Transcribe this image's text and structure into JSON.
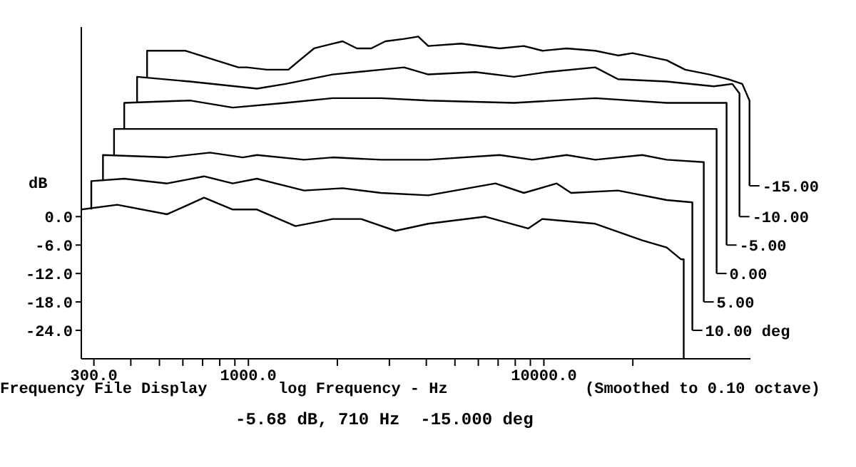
{
  "chart_data": {
    "type": "line",
    "xlabel": "log Frequency - Hz",
    "ylabel": "dB",
    "annotations": [
      "Frequency File Display",
      "(Smoothed to 0.10 octave)",
      "-5.68 dB, 710 Hz  -15.000 deg"
    ],
    "log": "x",
    "legend": "right",
    "marker": "none",
    "line_style": "solid",
    "xlim": [
      272,
      50000
    ],
    "ylim": [
      -30,
      40
    ],
    "xticks": [
      {
        "value": 300,
        "label": "300.0"
      },
      {
        "value": 400,
        "label": null
      },
      {
        "value": 500,
        "label": null
      },
      {
        "value": 600,
        "label": null
      },
      {
        "value": 700,
        "label": null
      },
      {
        "value": 800,
        "label": null
      },
      {
        "value": 900,
        "label": null
      },
      {
        "value": 1000,
        "label": "1000.0"
      },
      {
        "value": 2000,
        "label": null
      },
      {
        "value": 3000,
        "label": null
      },
      {
        "value": 4000,
        "label": null
      },
      {
        "value": 5000,
        "label": null
      },
      {
        "value": 6000,
        "label": null
      },
      {
        "value": 7000,
        "label": null
      },
      {
        "value": 8000,
        "label": null
      },
      {
        "value": 9000,
        "label": null
      },
      {
        "value": 10000,
        "label": "10000.0"
      },
      {
        "value": 20000,
        "label": null
      }
    ],
    "yticks": [
      {
        "value": 0,
        "label": "0.0"
      },
      {
        "value": -6,
        "label": "-6.0"
      },
      {
        "value": -12,
        "label": "-12.0"
      },
      {
        "value": -18,
        "label": "-18.0"
      },
      {
        "value": -24,
        "label": "-24.0"
      }
    ],
    "series": [
      {
        "name": "-15.00",
        "color": "#000000",
        "x": [
          454,
          454,
          613,
          925,
          989,
          1156,
          1366,
          1459,
          1668,
          1928,
          2084,
          2329,
          2603,
          2908,
          3363,
          3757,
          4062,
          5248,
          7085,
          8556,
          9886,
          11940,
          14920,
          17820,
          19940,
          26030,
          30070,
          36330,
          41980,
          46910,
          49640,
          49640
        ],
        "values": [
          29.5,
          35,
          35,
          31.5,
          31.5,
          31,
          31,
          32.5,
          35.5,
          36.5,
          37,
          35.5,
          35.5,
          37,
          37.5,
          38,
          36,
          36.5,
          35.5,
          36,
          35,
          35.5,
          35,
          34,
          34.5,
          33,
          31,
          30,
          29,
          28,
          24.5,
          6.5
        ]
      },
      {
        "name": "-10.00",
        "color": "#000000",
        "x": [
          420,
          420,
          634,
          1069,
          1336,
          1928,
          2812,
          3363,
          4062,
          5861,
          7920,
          10230,
          14920,
          17820,
          26030,
          37580,
          43420,
          45910,
          45910
        ],
        "values": [
          24,
          29.5,
          28.5,
          27,
          28,
          30,
          31,
          31.5,
          30,
          30.5,
          29.5,
          30.5,
          31.5,
          29,
          28.5,
          27.5,
          28,
          26,
          0
        ]
      },
      {
        "name": "-5.00",
        "color": "#000000",
        "x": [
          380,
          380,
          634,
          885,
          1336,
          1928,
          2812,
          4062,
          7920,
          14920,
          26030,
          37580,
          41520,
          41520
        ],
        "values": [
          18.5,
          24,
          24.5,
          23,
          24,
          25,
          25,
          24.5,
          24,
          25,
          24,
          24,
          24,
          -6
        ]
      },
      {
        "name": "0.00",
        "color": "#000000",
        "x": [
          351,
          351,
          38420,
          38420
        ],
        "values": [
          13,
          18.5,
          18.5,
          -12
        ]
      },
      {
        "name": "5.00",
        "color": "#000000",
        "x": [
          322,
          322,
          531,
          741,
          957,
          1069,
          1543,
          1928,
          2812,
          4062,
          7085,
          9145,
          11940,
          14920,
          21530,
          26030,
          34760,
          34760
        ],
        "values": [
          7.5,
          13,
          12.5,
          13.5,
          12.5,
          13,
          12,
          12.5,
          12,
          12,
          13,
          12,
          13,
          12,
          13,
          12,
          11.5,
          -18
        ]
      },
      {
        "name": "10.00 deg",
        "color": "#000000",
        "x": [
          294,
          294,
          380,
          531,
          708,
          885,
          1069,
          1543,
          2084,
          2812,
          4062,
          6855,
          8556,
          11050,
          12360,
          17820,
          26030,
          31800,
          31800
        ],
        "values": [
          1.5,
          7.5,
          8,
          7,
          8.5,
          7,
          8,
          5.5,
          6,
          5,
          4.5,
          7,
          5,
          7,
          5,
          5.5,
          3.5,
          3,
          -24
        ]
      },
      {
        "color": "#000000",
        "x": [
          272,
          360,
          531,
          708,
          885,
          1069,
          1443,
          1928,
          2409,
          3146,
          4062,
          6339,
          8845,
          9886,
          14920,
          21530,
          26030,
          29090,
          29730,
          29730
        ],
        "values": [
          1.5,
          2.5,
          0.5,
          4,
          1.5,
          1.5,
          -2,
          -0.5,
          -0.5,
          -3,
          -1.5,
          0,
          -2.5,
          -0.5,
          -1.5,
          -5,
          -6.5,
          -9,
          -9,
          -30
        ]
      }
    ]
  }
}
